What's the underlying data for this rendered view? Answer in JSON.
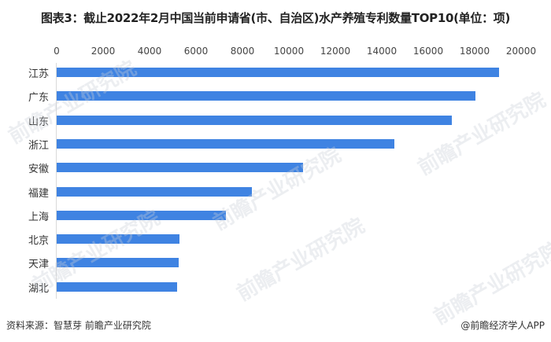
{
  "chart_data": {
    "type": "bar",
    "orientation": "horizontal",
    "title": "图表3：截止2022年2月中国当前申请省(市、自治区)水产养殖专利数量TOP10(单位：项)",
    "categories": [
      "江苏",
      "广东",
      "山东",
      "浙江",
      "安徽",
      "福建",
      "上海",
      "北京",
      "天津",
      "湖北"
    ],
    "values": [
      19050,
      18050,
      17000,
      14550,
      10600,
      8400,
      7300,
      5300,
      5250,
      5200
    ],
    "xlabel": "",
    "ylabel": "",
    "xlim": [
      0,
      20000
    ],
    "x_ticks": [
      "0",
      "2000",
      "4000",
      "6000",
      "8000",
      "10000",
      "12000",
      "14000",
      "16000",
      "18000",
      "20000"
    ],
    "x_axis_position": "top",
    "grid": false,
    "legend": null,
    "bar_color": "#3f83e2"
  },
  "footer": {
    "source": "资料来源：智慧芽 前瞻产业研究院",
    "credit": "@前瞻经济学人APP"
  },
  "watermark": "前瞻产业研究院"
}
